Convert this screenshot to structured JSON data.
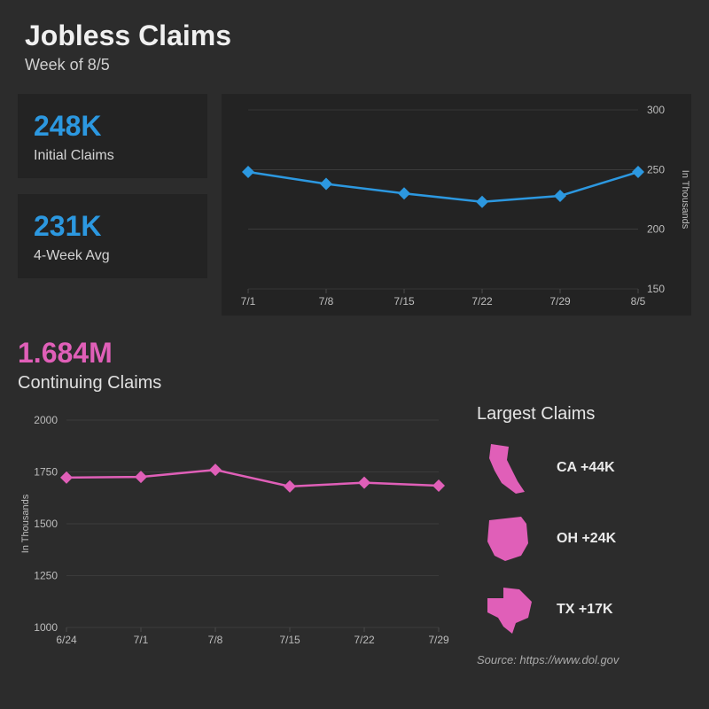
{
  "header": {
    "title": "Jobless Claims",
    "subtitle": "Week of 8/5"
  },
  "stats": {
    "initial": {
      "value": "248K",
      "label": "Initial Claims",
      "color": "#2c98e0"
    },
    "fourWeek": {
      "value": "231K",
      "label": "4-Week Avg",
      "color": "#2c98e0"
    },
    "continuing": {
      "value": "1.684M",
      "label": "Continuing Claims",
      "color": "#e05fb8"
    }
  },
  "initial_chart": {
    "type": "line",
    "x_labels": [
      "7/1",
      "7/8",
      "7/15",
      "7/22",
      "7/29",
      "8/5"
    ],
    "values": [
      248,
      238,
      230,
      223,
      228,
      248
    ],
    "ylim": [
      150,
      300
    ],
    "yticks": [
      150,
      200,
      250,
      300
    ],
    "y_axis_label": "In Thousands",
    "line_color": "#2c98e0",
    "marker_color": "#2c98e0",
    "marker_size": 7,
    "line_width": 2.5,
    "background": "#232323",
    "grid_color": "#4a4a4a",
    "tick_color": "#bdbdbd",
    "tick_fontsize": 12
  },
  "continuing_chart": {
    "type": "line",
    "x_labels": [
      "6/24",
      "7/1",
      "7/8",
      "7/15",
      "7/22",
      "7/29"
    ],
    "values": [
      1723,
      1726,
      1760,
      1680,
      1698,
      1684
    ],
    "ylim": [
      1000,
      2000
    ],
    "yticks": [
      1000,
      1250,
      1500,
      1750,
      2000
    ],
    "y_axis_label": "In Thousands",
    "line_color": "#e05fb8",
    "marker_color": "#e05fb8",
    "marker_size": 7,
    "line_width": 2.5,
    "background": "#2c2c2c",
    "grid_color": "#4a4a4a",
    "tick_color": "#bdbdbd",
    "tick_fontsize": 12
  },
  "largest": {
    "title": "Largest Claims",
    "color": "#e05fb8",
    "items": [
      {
        "state": "CA",
        "delta": "+44K",
        "shape": "ca"
      },
      {
        "state": "OH",
        "delta": "+24K",
        "shape": "oh"
      },
      {
        "state": "TX",
        "delta": "+17K",
        "shape": "tx"
      }
    ]
  },
  "source": "Source: https://www.dol.gov"
}
